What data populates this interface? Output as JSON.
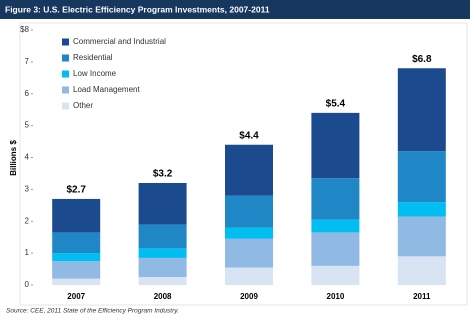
{
  "chart_data": {
    "type": "stacked-bar",
    "title": "Figure 3: U.S. Electric Efficiency Program Investments, 2007-2011",
    "y_label": "Billions $",
    "source": "Source: CEE, 2011 State of the Efficiency Program Industry.",
    "categories": [
      "2007",
      "2008",
      "2009",
      "2010",
      "2011"
    ],
    "series": [
      {
        "name": "Commercial and Industrial",
        "color": "#1c4a8f",
        "values": [
          1.05,
          1.3,
          1.6,
          2.05,
          2.6
        ]
      },
      {
        "name": "Residential",
        "color": "#1f87c6",
        "values": [
          0.65,
          0.75,
          1.0,
          1.3,
          1.6
        ]
      },
      {
        "name": "Low Income",
        "color": "#00bdf2",
        "values": [
          0.25,
          0.3,
          0.35,
          0.4,
          0.45
        ]
      },
      {
        "name": "Load Management",
        "color": "#90b9e4",
        "values": [
          0.55,
          0.6,
          0.9,
          1.05,
          1.25
        ]
      },
      {
        "name": "Other",
        "color": "#d8e3f3",
        "values": [
          0.2,
          0.25,
          0.55,
          0.6,
          0.9
        ]
      }
    ],
    "totals": {
      "values": [
        2.7,
        3.2,
        4.4,
        5.4,
        6.8
      ],
      "value_labels": [
        "$2.7",
        "$3.2",
        "$4.4",
        "$5.4",
        "$6.8"
      ]
    },
    "ylim": [
      0,
      8
    ],
    "yticks": [
      0,
      1,
      2,
      3,
      4,
      5,
      6,
      7,
      {
        "value": 8,
        "label": "$8"
      }
    ],
    "legend": "top-left"
  }
}
